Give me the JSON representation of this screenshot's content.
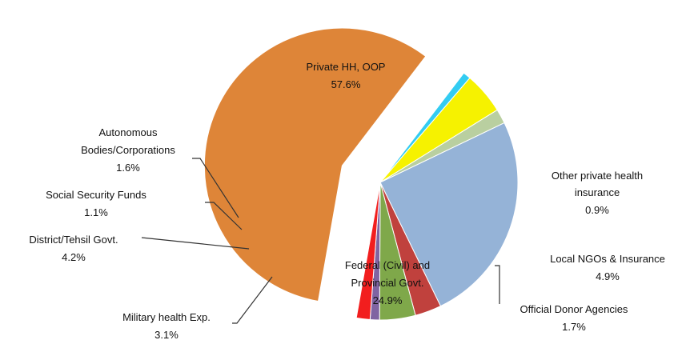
{
  "chart_data": {
    "type": "pie",
    "title": "",
    "exploded": "Private HH, OOP",
    "slices": [
      {
        "label": "Private HH, OOP",
        "value": 57.6,
        "display": "57.6%",
        "color": "#DE8538"
      },
      {
        "label": "Other private health insurance",
        "value": 0.9,
        "display": "0.9%",
        "color": "#33CCF2"
      },
      {
        "label": "Local NGOs & Insurance",
        "value": 4.9,
        "display": "4.9%",
        "color": "#F6F200"
      },
      {
        "label": "Official Donor Agencies",
        "value": 1.7,
        "display": "1.7%",
        "color": "#B9CFA0"
      },
      {
        "label": "Federal (Civil) and Provincial Govt.",
        "value": 24.9,
        "display": "24.9%",
        "color": "#95B3D7"
      },
      {
        "label": "Military health Exp.",
        "value": 3.1,
        "display": "3.1%",
        "color": "#C0413D"
      },
      {
        "label": "District/Tehsil Govt.",
        "value": 4.2,
        "display": "4.2%",
        "color": "#7FA84A"
      },
      {
        "label": "Social Security Funds",
        "value": 1.1,
        "display": "1.1%",
        "color": "#8064A2"
      },
      {
        "label": "Autonomous Bodies/Corporations",
        "value": 1.6,
        "display": "1.6%",
        "color": "#F21E1E"
      }
    ]
  }
}
